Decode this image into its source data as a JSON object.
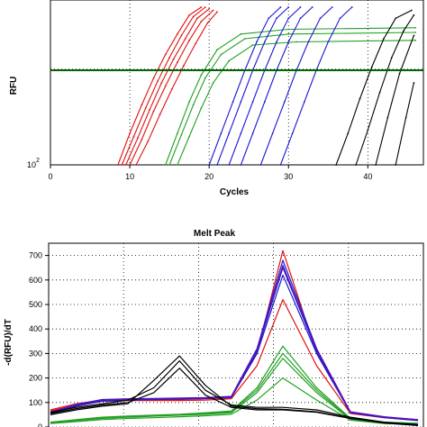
{
  "chart_data": [
    {
      "type": "line",
      "title": "",
      "xlabel": "Cycles",
      "ylabel": "RFU",
      "y_scale": "log",
      "xlim": [
        0,
        47
      ],
      "x_ticks": [
        "0",
        "10",
        "20",
        "30",
        "40"
      ],
      "y_tick_label_base": "10",
      "y_tick_label_exp": "2",
      "grid": true,
      "threshold_color": "#006400",
      "series": [
        {
          "color": "#e01010",
          "x": [
            8.5,
            10,
            11.5,
            13,
            14.5,
            16,
            17.5,
            19
          ],
          "y_frac": [
            0.0,
            0.2,
            0.38,
            0.55,
            0.7,
            0.83,
            0.95,
            1.0
          ]
        },
        {
          "color": "#e01010",
          "x": [
            9,
            10.5,
            12,
            13.5,
            15,
            16.5,
            18,
            19.5
          ],
          "y_frac": [
            0.0,
            0.18,
            0.36,
            0.53,
            0.68,
            0.82,
            0.94,
            1.0
          ]
        },
        {
          "color": "#e01010",
          "x": [
            9.5,
            11,
            12.5,
            14,
            15.5,
            17,
            18.5,
            20
          ],
          "y_frac": [
            0.0,
            0.17,
            0.35,
            0.52,
            0.67,
            0.8,
            0.93,
            0.99
          ]
        },
        {
          "color": "#e01010",
          "x": [
            10,
            11.5,
            13,
            14.5,
            16,
            17.5,
            19,
            20.5
          ],
          "y_frac": [
            0.0,
            0.16,
            0.34,
            0.5,
            0.65,
            0.79,
            0.91,
            0.98
          ]
        },
        {
          "color": "#e01010",
          "x": [
            10.8,
            12.3,
            13.8,
            15.3,
            16.8,
            18.3,
            19.8,
            21
          ],
          "y_frac": [
            0.0,
            0.15,
            0.32,
            0.48,
            0.63,
            0.77,
            0.9,
            0.97
          ]
        },
        {
          "color": "#22a022",
          "x": [
            14.5,
            16,
            17.5,
            19,
            21,
            24,
            30,
            46
          ],
          "y_frac": [
            0.0,
            0.2,
            0.4,
            0.57,
            0.73,
            0.83,
            0.86,
            0.87
          ]
        },
        {
          "color": "#22a022",
          "x": [
            15,
            16.5,
            18,
            19.5,
            21.5,
            24.5,
            30,
            46
          ],
          "y_frac": [
            0.0,
            0.19,
            0.38,
            0.55,
            0.7,
            0.8,
            0.83,
            0.84
          ]
        },
        {
          "color": "#22a022",
          "x": [
            16,
            17.5,
            19,
            20.5,
            22.5,
            25.5,
            31,
            46
          ],
          "y_frac": [
            0.0,
            0.18,
            0.36,
            0.52,
            0.66,
            0.76,
            0.78,
            0.79
          ]
        },
        {
          "color": "#1a1ad0",
          "x": [
            20,
            21.5,
            23,
            24.5,
            26,
            27.5,
            29
          ],
          "y_frac": [
            0.0,
            0.2,
            0.4,
            0.6,
            0.78,
            0.93,
            1.0
          ]
        },
        {
          "color": "#1a1ad0",
          "x": [
            21,
            22.5,
            24,
            25.5,
            27,
            28.5,
            30
          ],
          "y_frac": [
            0.0,
            0.2,
            0.4,
            0.6,
            0.78,
            0.93,
            1.0
          ]
        },
        {
          "color": "#1a1ad0",
          "x": [
            22.5,
            24,
            25.5,
            27,
            28.5,
            30,
            31.5
          ],
          "y_frac": [
            0.0,
            0.2,
            0.4,
            0.6,
            0.78,
            0.93,
            1.0
          ]
        },
        {
          "color": "#1a1ad0",
          "x": [
            24,
            25.5,
            27,
            28.5,
            30,
            31.5,
            33
          ],
          "y_frac": [
            0.0,
            0.2,
            0.4,
            0.6,
            0.78,
            0.93,
            1.0
          ]
        },
        {
          "color": "#1a1ad0",
          "x": [
            26.5,
            28,
            29.5,
            31,
            32.5,
            34,
            35.5
          ],
          "y_frac": [
            0.0,
            0.2,
            0.4,
            0.6,
            0.78,
            0.93,
            1.0
          ]
        },
        {
          "color": "#1a1ad0",
          "x": [
            29,
            30.5,
            32,
            33.5,
            35,
            36.5,
            38
          ],
          "y_frac": [
            0.0,
            0.2,
            0.4,
            0.6,
            0.78,
            0.93,
            1.0
          ]
        },
        {
          "color": "#000000",
          "x": [
            36,
            37.5,
            39,
            40.5,
            42,
            43.5,
            45.5
          ],
          "y_frac": [
            0.0,
            0.2,
            0.42,
            0.62,
            0.8,
            0.93,
            0.98
          ]
        },
        {
          "color": "#000000",
          "x": [
            38.5,
            40,
            41.5,
            43,
            44.5,
            45.8
          ],
          "y_frac": [
            0.0,
            0.22,
            0.46,
            0.68,
            0.85,
            0.95
          ]
        },
        {
          "color": "#000000",
          "x": [
            41,
            42.5,
            44,
            45.8
          ],
          "y_frac": [
            0.0,
            0.3,
            0.58,
            0.82
          ]
        },
        {
          "color": "#000000",
          "x": [
            43.5,
            44.8,
            45.8
          ],
          "y_frac": [
            0.0,
            0.3,
            0.52
          ]
        }
      ],
      "threshold_y_frac": 0.6
    },
    {
      "type": "line",
      "title": "Melt Peak",
      "xlabel": "",
      "ylabel": "-d(RFU)/dT",
      "ylim": [
        0,
        750
      ],
      "y_ticks": [
        "0",
        "100",
        "200",
        "300",
        "400",
        "500",
        "600",
        "700"
      ],
      "grid": true,
      "peak_x_frac": 0.625,
      "series": [
        {
          "color": "#e01010",
          "y": [
            70,
            95,
            110,
            112,
            112,
            112,
            115,
            120,
            300,
            720,
            300,
            60,
            40,
            30
          ]
        },
        {
          "color": "#e01010",
          "y": [
            65,
            90,
            105,
            108,
            108,
            108,
            110,
            115,
            250,
            520,
            250,
            55,
            38,
            28
          ]
        },
        {
          "color": "#1a1ad0",
          "y": [
            60,
            92,
            112,
            115,
            116,
            118,
            120,
            125,
            320,
            680,
            320,
            62,
            42,
            30
          ]
        },
        {
          "color": "#1a1ad0",
          "y": [
            58,
            88,
            108,
            112,
            114,
            116,
            118,
            122,
            310,
            650,
            310,
            60,
            40,
            28
          ]
        },
        {
          "color": "#1a1ad0",
          "y": [
            55,
            85,
            105,
            110,
            112,
            114,
            116,
            120,
            300,
            620,
            300,
            58,
            38,
            26
          ]
        },
        {
          "color": "#6a0dad",
          "y": [
            62,
            90,
            110,
            114,
            114,
            116,
            118,
            122,
            315,
            660,
            315,
            61,
            41,
            29
          ]
        },
        {
          "color": "#22a022",
          "y": [
            20,
            30,
            40,
            45,
            48,
            52,
            58,
            65,
            160,
            330,
            160,
            35,
            20,
            15
          ]
        },
        {
          "color": "#22a022",
          "y": [
            18,
            28,
            38,
            42,
            46,
            50,
            55,
            62,
            150,
            300,
            150,
            32,
            18,
            14
          ]
        },
        {
          "color": "#22a022",
          "y": [
            16,
            26,
            35,
            40,
            44,
            48,
            52,
            58,
            140,
            280,
            140,
            30,
            16,
            12
          ]
        },
        {
          "color": "#22a022",
          "y": [
            14,
            22,
            30,
            35,
            38,
            42,
            46,
            52,
            110,
            200,
            110,
            28,
            14,
            10
          ]
        },
        {
          "color": "#000000",
          "y": [
            60,
            80,
            95,
            110,
            160,
            270,
            150,
            90,
            80,
            80,
            70,
            40,
            20,
            10
          ]
        },
        {
          "color": "#000000",
          "y": [
            55,
            75,
            90,
            100,
            140,
            240,
            130,
            80,
            70,
            70,
            60,
            35,
            18,
            8
          ]
        },
        {
          "color": "#000000",
          "y": [
            50,
            70,
            85,
            95,
            190,
            290,
            170,
            85,
            75,
            72,
            62,
            36,
            16,
            6
          ]
        }
      ]
    }
  ]
}
